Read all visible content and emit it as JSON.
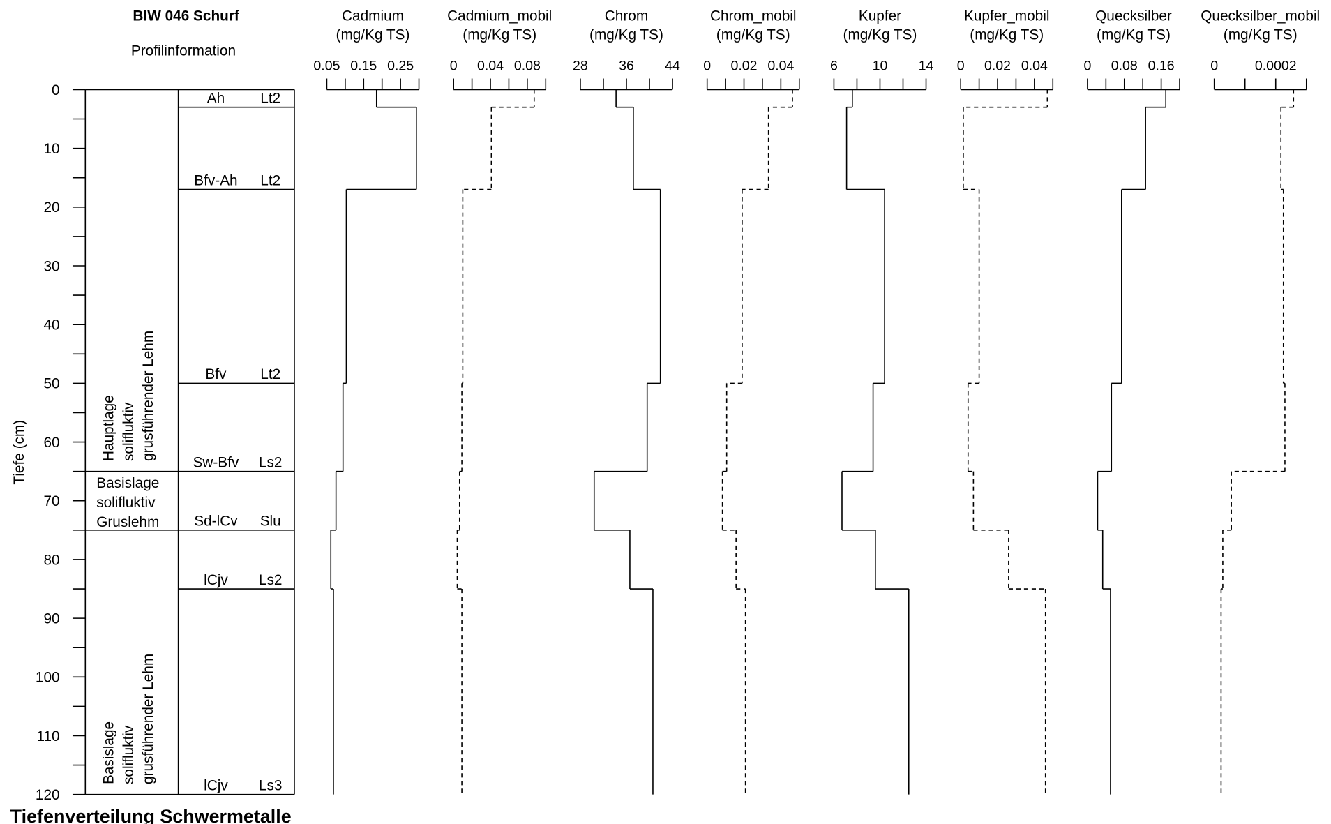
{
  "chart_data": {
    "type": "depth-profile",
    "title": "Tiefenverteilung Schwermetalle",
    "ylabel": "Tiefe (cm)",
    "ylim": [
      0,
      120
    ],
    "yticks": [
      0,
      10,
      20,
      30,
      40,
      50,
      60,
      70,
      80,
      90,
      100,
      110,
      120
    ],
    "yminor_ticks": [
      5,
      15,
      25,
      35,
      45,
      55,
      65,
      75,
      85,
      95,
      105,
      115
    ],
    "depths": [
      0,
      3,
      17,
      50,
      65,
      75,
      85,
      120
    ],
    "profile": {
      "title": "BIW 046 Schurf",
      "subtitle": "Profilinformation",
      "horizons": [
        {
          "name": "Ah",
          "texture": "Lt2"
        },
        {
          "name": "Bfv-Ah",
          "texture": "Lt2"
        },
        {
          "name": "Bfv",
          "texture": "Lt2"
        },
        {
          "name": "Sw-Bfv",
          "texture": "Ls2"
        },
        {
          "name": "Sd-lCv",
          "texture": "Slu"
        },
        {
          "name": "lCjv",
          "texture": "Ls2"
        },
        {
          "name": "lCjv",
          "texture": "Ls3"
        }
      ],
      "layers": [
        {
          "top": 0,
          "bottom": 65,
          "orientation": "vertical",
          "lines": [
            "Hauptlage",
            "solifluktiv",
            "grusführender Lehm"
          ]
        },
        {
          "top": 65,
          "bottom": 75,
          "orientation": "horizontal",
          "lines": [
            "Basislage",
            "solifluktiv",
            "Gruslehm"
          ]
        },
        {
          "top": 75,
          "bottom": 120,
          "orientation": "vertical",
          "lines": [
            "Basislage",
            "solifluktiv",
            "grusführender Lehm"
          ]
        }
      ]
    },
    "series": [
      {
        "name": "Cadmium",
        "unit": "(mg/Kg TS)",
        "dashed": false,
        "color": "#000000",
        "xlim": [
          0.05,
          0.3
        ],
        "xticks": [
          0.05,
          0.15,
          0.25
        ],
        "xminor_ticks": [
          0.1,
          0.2,
          0.3
        ],
        "values": [
          0.185,
          0.293,
          0.103,
          0.094,
          0.075,
          0.061,
          0.068
        ]
      },
      {
        "name": "Cadmium_mobil",
        "unit": "(mg/Kg TS)",
        "dashed": true,
        "color": "#000000",
        "xlim": [
          0,
          0.1
        ],
        "xticks": [
          0,
          0.04,
          0.08
        ],
        "xminor_ticks": [
          0.02,
          0.06,
          0.1
        ],
        "values": [
          0.0875,
          0.041,
          0.01,
          0.009,
          0.0065,
          0.004,
          0.009
        ]
      },
      {
        "name": "Chrom",
        "unit": "(mg/Kg TS)",
        "dashed": false,
        "color": "#000000",
        "xlim": [
          28,
          44
        ],
        "xticks": [
          28,
          36,
          44
        ],
        "xminor_ticks": [
          32,
          40
        ],
        "values": [
          34.2,
          37.2,
          41.9,
          39.6,
          30.4,
          36.6,
          40.6
        ]
      },
      {
        "name": "Chrom_mobil",
        "unit": "(mg/Kg TS)",
        "dashed": true,
        "color": "#000000",
        "xlim": [
          0,
          0.05
        ],
        "xticks": [
          0,
          0.02,
          0.04
        ],
        "xminor_ticks": [
          0.01,
          0.03,
          0.05
        ],
        "values": [
          0.0463,
          0.0333,
          0.019,
          0.0106,
          0.0083,
          0.0157,
          0.0208
        ]
      },
      {
        "name": "Kupfer",
        "unit": "(mg/Kg TS)",
        "dashed": false,
        "color": "#000000",
        "xlim": [
          6,
          14
        ],
        "xticks": [
          6,
          10,
          14
        ],
        "xminor_ticks": [
          8,
          12
        ],
        "values": [
          7.6,
          7.1,
          10.4,
          9.4,
          6.7,
          9.6,
          12.5
        ]
      },
      {
        "name": "Kupfer_mobil",
        "unit": "(mg/Kg TS)",
        "dashed": true,
        "color": "#000000",
        "xlim": [
          0,
          0.05
        ],
        "xticks": [
          0,
          0.02,
          0.04
        ],
        "xminor_ticks": [
          0.01,
          0.03,
          0.05
        ],
        "values": [
          0.047,
          0.0014,
          0.01,
          0.004,
          0.0069,
          0.026,
          0.046
        ]
      },
      {
        "name": "Quecksilber",
        "unit": "(mg/Kg TS)",
        "dashed": false,
        "color": "#000000",
        "xlim": [
          0,
          0.2
        ],
        "xticks": [
          0,
          0.08,
          0.16
        ],
        "xminor_ticks": [
          0.04,
          0.12,
          0.2
        ],
        "values": [
          0.17,
          0.126,
          0.074,
          0.052,
          0.022,
          0.033,
          0.05
        ]
      },
      {
        "name": "Quecksilber_mobil",
        "unit": "(mg/Kg TS)",
        "dashed": true,
        "color": "#000000",
        "xlim": [
          0,
          0.0003
        ],
        "xticks": [
          0,
          0.0002
        ],
        "xminor_ticks": [
          0.0001,
          0.0003
        ],
        "values": [
          0.000258,
          0.000217,
          0.000225,
          0.00023,
          5.56e-05,
          2.78e-05,
          2.22e-05
        ]
      }
    ]
  }
}
